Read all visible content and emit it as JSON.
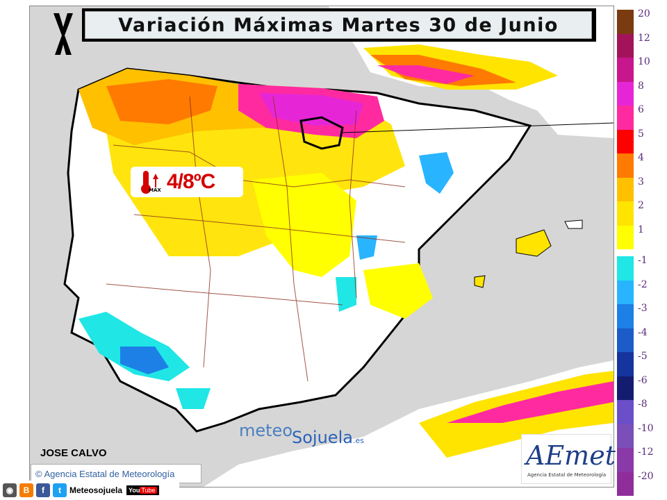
{
  "title": "Variación Máximas Martes 30 de Junio",
  "badge": {
    "icon": "thermometer-max-icon",
    "icon_label": "MAX",
    "value": "4/8ºC"
  },
  "author": "JOSE CALVO",
  "copyright": "© Agencia Estatal de Meteorología",
  "brand": {
    "meteo": "meteo",
    "sojuela": "Sojuela",
    "tld": ".es"
  },
  "aemet": {
    "logo": "AEmet",
    "subtitle": "Agencia Estatal de Meteorología"
  },
  "footer": {
    "name": "Meteosojuela",
    "youtube_a": "You",
    "youtube_b": "Tube"
  },
  "legend": [
    {
      "label": "20",
      "color": "#7a3b10"
    },
    {
      "label": "12",
      "color": "#a3135a"
    },
    {
      "label": "10",
      "color": "#c8168c"
    },
    {
      "label": "8",
      "color": "#e626d6"
    },
    {
      "label": "6",
      "color": "#ff2aa0"
    },
    {
      "label": "5",
      "color": "#ff0000"
    },
    {
      "label": "4",
      "color": "#ff7a00"
    },
    {
      "label": "3",
      "color": "#ffc000"
    },
    {
      "label": "2",
      "color": "#ffe400"
    },
    {
      "label": "1",
      "color": "#ffff00"
    },
    {
      "label": "-1",
      "color": "#20e6e6"
    },
    {
      "label": "-2",
      "color": "#28b4ff"
    },
    {
      "label": "-3",
      "color": "#1c80e6"
    },
    {
      "label": "-4",
      "color": "#1b5cc8"
    },
    {
      "label": "-5",
      "color": "#16349e"
    },
    {
      "label": "-6",
      "color": "#141c70"
    },
    {
      "label": "-8",
      "color": "#6a4fc8"
    },
    {
      "label": "-10",
      "color": "#7a4fb8"
    },
    {
      "label": "-12",
      "color": "#8a3aa8"
    },
    {
      "label": "-20",
      "color": "#8f2e9a"
    }
  ]
}
